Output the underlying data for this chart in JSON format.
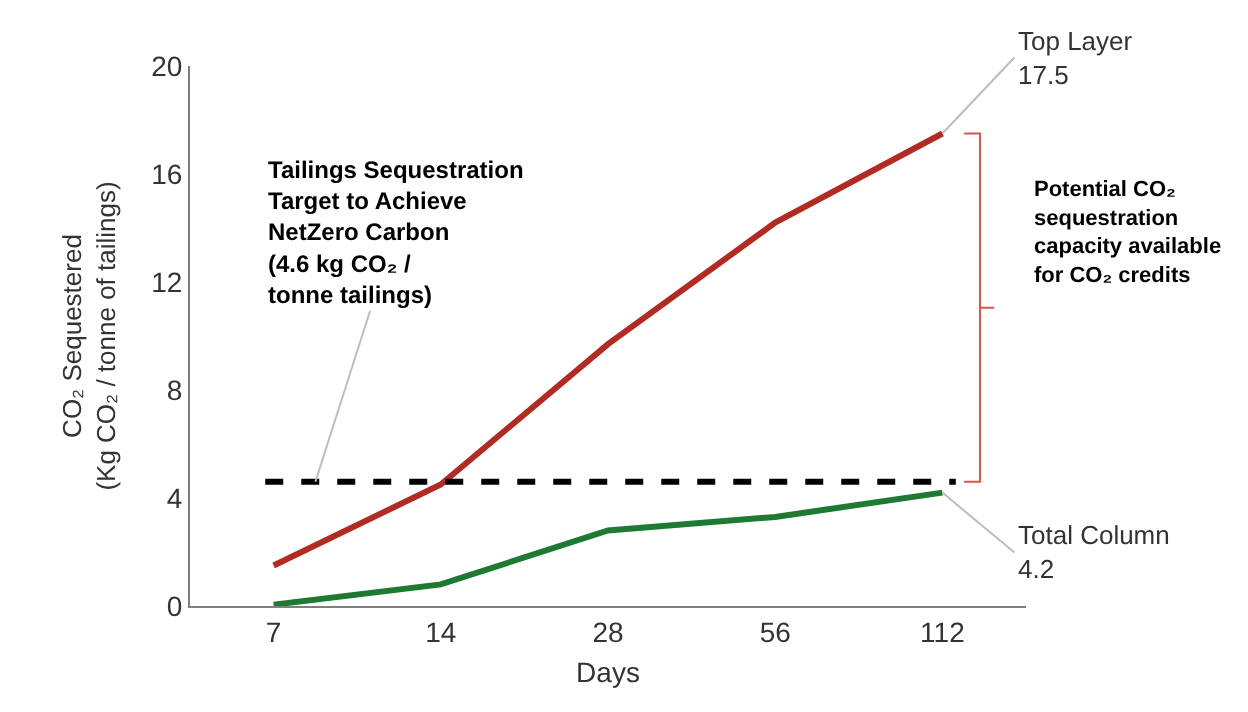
{
  "chart_data": {
    "type": "line",
    "xlabel": "Days",
    "ylabel": "CO₂ Sequestered\n(Kg CO₂ / tonne of tailings)",
    "categories": [
      "7",
      "14",
      "28",
      "56",
      "112"
    ],
    "series": [
      {
        "name": "Top Layer",
        "color": "#b22a24",
        "values": [
          1.5,
          4.5,
          9.7,
          14.2,
          17.5
        ],
        "value_labels": [
          null,
          null,
          null,
          null,
          "17.5"
        ]
      },
      {
        "name": "Total Column",
        "color": "#1e7a32",
        "values": [
          0.05,
          0.8,
          2.8,
          3.3,
          4.2
        ],
        "value_labels": [
          null,
          null,
          null,
          null,
          "4.2"
        ]
      }
    ],
    "ylim": [
      0,
      20
    ],
    "yticks": [
      0,
      4,
      8,
      12,
      16,
      20
    ],
    "ref_lines": [
      {
        "axis": "y",
        "value": 4.6,
        "label": "Tailings Sequestration\nTarget to Achieve\nNetZero Carbon\n(4.6 kg CO₂ /\ntonne tailings)",
        "color": "#000000",
        "line_style": "dashed"
      }
    ],
    "annotations": [
      "Potential CO₂\nsequestration\ncapacity available\nfor CO₂ credits"
    ],
    "grid": false,
    "legend": false,
    "marker": "none",
    "line_style": "solid"
  }
}
